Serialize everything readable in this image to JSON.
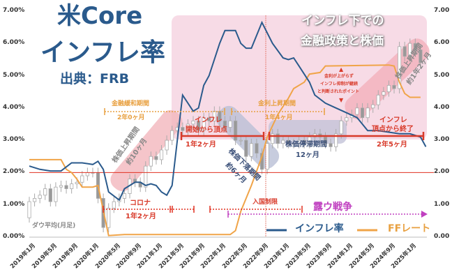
{
  "title": {
    "line1": "米Core",
    "line2": "インフレ率",
    "source": "出典：FRB",
    "sub1": "インフレ下での",
    "sub2": "金融政策と株価"
  },
  "colors": {
    "inflation": "#2a5a8c",
    "ff": "#f0a448",
    "ref_line": "#e03020",
    "war": "#c040c0",
    "annot": "#d83a2a"
  },
  "legend": {
    "inflation": "インフレ率",
    "ff": "FFレート",
    "dow": "ダウ平均(月足)"
  },
  "annotations": {
    "easing": "金融緩和期間",
    "easing_dur": "2年0ヶ月",
    "hiking": "金利上昇期間",
    "hiking_dur": "1年4ヶ月",
    "infl_start1": "インフレ",
    "infl_start2": "開始から頂点",
    "infl_start_dur": "1年2ヶ月",
    "infl_end1": "インフレ",
    "infl_end2": "頂点から終了",
    "infl_end_dur": "2年5ヶ月",
    "stag": "株価停滞期間",
    "stag_dur": "12ヶ月",
    "fall": "株価下落期間",
    "fall_dur": "約6ヶ月",
    "rise1": "株価上昇期間",
    "rise1_dur": "約10ヶ月",
    "rise2": "株価上昇期間",
    "rise2_dur": "約1年2ヶ月",
    "point1": "金利が上がらず",
    "point2": "インフレ抑制が継続",
    "point3": "と判断されたポイント",
    "corona": "コロナ",
    "corona_dur": "1年2ヶ月",
    "entry": "入国制限",
    "war": "露ウ戦争"
  },
  "chart_data": {
    "type": "line",
    "x_unit": "months since 2019年1月",
    "ylim": [
      0,
      7
    ],
    "yticks_left": [
      "0.00%",
      "1.00%",
      "2.00%",
      "3.00%",
      "4.00%",
      "5.00%",
      "6.00%",
      "7.00%"
    ],
    "yticks_right": [
      "0.00",
      "1.00",
      "2.00",
      "3.00",
      "4.00",
      "5.00",
      "6.00",
      "7.00"
    ],
    "xticks": [
      "2019年1月",
      "2019年5月",
      "2019年9月",
      "2020年1月",
      "2020年5月",
      "2020年9月",
      "2021年1月",
      "2021年5月",
      "2021年9月",
      "2022年1月",
      "2022年5月",
      "2022年9月",
      "2023年1月",
      "2023年5月",
      "2023年9月",
      "2024年1月",
      "2024年5月",
      "2024年9月",
      "2025年1月"
    ],
    "reference_line": 2.0,
    "series": [
      {
        "name": "インフレ率",
        "points": [
          [
            0,
            2.2
          ],
          [
            2,
            2.1
          ],
          [
            4,
            2.05
          ],
          [
            6,
            2.05
          ],
          [
            8,
            2.3
          ],
          [
            10,
            2.3
          ],
          [
            12,
            2.25
          ],
          [
            13,
            2.35
          ],
          [
            14,
            2.1
          ],
          [
            15,
            1.4
          ],
          [
            17,
            1.15
          ],
          [
            18,
            1.5
          ],
          [
            20,
            1.7
          ],
          [
            21,
            1.7
          ],
          [
            22,
            1.6
          ],
          [
            23,
            1.65
          ],
          [
            24,
            1.6
          ],
          [
            25,
            1.4
          ],
          [
            26,
            1.3
          ],
          [
            27,
            1.6
          ],
          [
            28,
            3.0
          ],
          [
            29,
            4.4
          ],
          [
            31,
            3.9
          ],
          [
            32,
            4.0
          ],
          [
            33,
            4.7
          ],
          [
            34,
            5.0
          ],
          [
            36,
            6.0
          ],
          [
            37,
            6.4
          ],
          [
            39,
            6.4
          ],
          [
            40,
            6.0
          ],
          [
            41,
            5.85
          ],
          [
            42,
            5.85
          ],
          [
            44,
            6.65
          ],
          [
            46,
            6.0
          ],
          [
            48,
            5.55
          ],
          [
            49,
            5.5
          ],
          [
            50,
            5.55
          ],
          [
            51,
            5.3
          ],
          [
            53,
            4.8
          ],
          [
            54,
            4.4
          ],
          [
            56,
            4.15
          ],
          [
            58,
            4.0
          ],
          [
            60,
            3.85
          ],
          [
            62,
            3.7
          ],
          [
            64,
            3.3
          ],
          [
            66,
            3.3
          ],
          [
            68,
            3.25
          ],
          [
            70,
            3.2
          ],
          [
            72,
            3.2
          ],
          [
            74,
            3.1
          ],
          [
            75,
            2.8
          ]
        ]
      },
      {
        "name": "FFレート",
        "points": [
          [
            0,
            2.4
          ],
          [
            2,
            2.4
          ],
          [
            4,
            2.4
          ],
          [
            6,
            2.4
          ],
          [
            7,
            2.1
          ],
          [
            8,
            2.0
          ],
          [
            9,
            1.8
          ],
          [
            10,
            1.55
          ],
          [
            12,
            1.55
          ],
          [
            13,
            1.6
          ],
          [
            15,
            0.05
          ],
          [
            18,
            0.08
          ],
          [
            24,
            0.08
          ],
          [
            38,
            0.08
          ],
          [
            39,
            0.2
          ],
          [
            40,
            0.8
          ],
          [
            42,
            1.6
          ],
          [
            44,
            2.5
          ],
          [
            45,
            3.1
          ],
          [
            47,
            3.8
          ],
          [
            49,
            4.3
          ],
          [
            50,
            4.6
          ],
          [
            52,
            4.8
          ],
          [
            53,
            5.05
          ],
          [
            55,
            5.1
          ],
          [
            56,
            5.3
          ],
          [
            68,
            5.33
          ],
          [
            69,
            5.3
          ],
          [
            70,
            4.8
          ],
          [
            71,
            4.45
          ],
          [
            72,
            4.33
          ],
          [
            74,
            4.33
          ]
        ]
      }
    ],
    "dow_candles_close": [
      1.1,
      1.2,
      1.3,
      1.5,
      1.1,
      1.55,
      1.6,
      1.5,
      1.65,
      1.7,
      1.9,
      2.0,
      2.0,
      1.2,
      0.3,
      0.9,
      1.1,
      1.2,
      1.35,
      1.8,
      1.7,
      1.55,
      2.2,
      2.5,
      2.4,
      2.7,
      3.0,
      3.3,
      3.4,
      3.3,
      3.5,
      3.6,
      3.3,
      3.7,
      3.6,
      3.9,
      3.6,
      3.4,
      3.6,
      3.0,
      3.0,
      2.5,
      2.9,
      2.6,
      2.1,
      2.9,
      3.2,
      2.9,
      3.0,
      2.9,
      2.9,
      3.0,
      2.9,
      3.1,
      3.2,
      3.1,
      2.9,
      2.8,
      3.2,
      3.6,
      3.7,
      3.8,
      4.0,
      3.7,
      4.0,
      4.1,
      4.4,
      4.5,
      4.7,
      4.6,
      5.9,
      5.6,
      6.0,
      5.8,
      5.4
    ],
    "dow_first_open": 0.6
  }
}
